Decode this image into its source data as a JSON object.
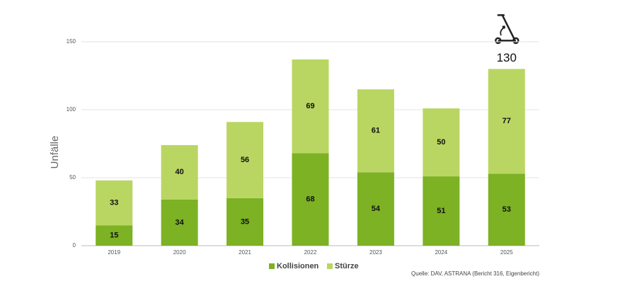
{
  "chart_data": {
    "type": "stacked_bar",
    "ylabel": "Unfälle",
    "categories": [
      "2019",
      "2020",
      "2021",
      "2022",
      "2023",
      "2024",
      "2025"
    ],
    "series": [
      {
        "name": "Kollisionen",
        "color": "#7cb224",
        "values": [
          15,
          34,
          35,
          68,
          54,
          51,
          53
        ]
      },
      {
        "name": "Stürze",
        "color": "#b9d662",
        "values": [
          33,
          40,
          56,
          69,
          61,
          50,
          77
        ]
      }
    ],
    "ylim": [
      0,
      150
    ],
    "yticks": [
      0,
      50,
      100,
      150
    ],
    "grid": true,
    "annotation": {
      "category": 6,
      "value": 130
    },
    "source": "Quelle: DAV, ASTRANA (Bericht 316, Eigenbericht)"
  }
}
